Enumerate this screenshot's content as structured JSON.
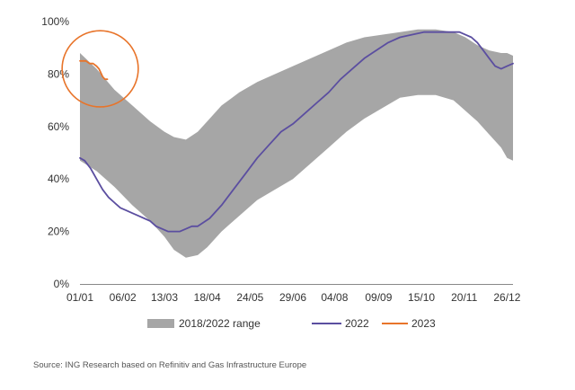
{
  "colors": {
    "range": "#a6a6a6",
    "line2022": "#5b4ea0",
    "line2023": "#e8742a",
    "axis": "#888888",
    "text": "#333333"
  },
  "source": "Source: ING Research based on Refinitiv and Gas Infrastructure Europe",
  "chart_data": {
    "type": "area",
    "x_unit": "day_of_year",
    "xlim": [
      1,
      365
    ],
    "ylim": [
      0,
      100
    ],
    "y_ticks": [
      0,
      20,
      40,
      60,
      80,
      100
    ],
    "y_tick_labels": [
      "0%",
      "20%",
      "40%",
      "60%",
      "80%",
      "100%"
    ],
    "x_ticks": [
      1,
      37,
      72,
      108,
      144,
      180,
      215,
      252,
      288,
      324,
      360
    ],
    "x_tick_labels": [
      "01/01",
      "06/02",
      "13/03",
      "18/04",
      "24/05",
      "29/06",
      "04/08",
      "09/09",
      "15/10",
      "20/11",
      "26/12"
    ],
    "grid": false,
    "legend_position": "bottom",
    "legend": [
      {
        "label": "2018/2022 range",
        "kind": "area"
      },
      {
        "label": "2022",
        "kind": "line"
      },
      {
        "label": "2023",
        "kind": "line"
      }
    ],
    "series": [
      {
        "name": "2018/2022 range",
        "kind": "band",
        "x": [
          1,
          15,
          30,
          45,
          60,
          72,
          80,
          90,
          100,
          108,
          120,
          135,
          150,
          165,
          180,
          195,
          210,
          225,
          240,
          255,
          270,
          285,
          300,
          315,
          325,
          335,
          345,
          355,
          360,
          365
        ],
        "upper": [
          88,
          82,
          74,
          68,
          62,
          58,
          56,
          55,
          58,
          62,
          68,
          73,
          77,
          80,
          83,
          86,
          89,
          92,
          94,
          95,
          96,
          97,
          97,
          96,
          94,
          91,
          89,
          88,
          88,
          87
        ],
        "lower": [
          47,
          43,
          37,
          30,
          24,
          18,
          13,
          10,
          11,
          14,
          20,
          26,
          32,
          36,
          40,
          46,
          52,
          58,
          63,
          67,
          71,
          72,
          72,
          70,
          66,
          62,
          57,
          52,
          48,
          47
        ]
      },
      {
        "name": "2022",
        "kind": "line",
        "x": [
          1,
          5,
          10,
          15,
          20,
          25,
          30,
          35,
          40,
          45,
          50,
          55,
          60,
          65,
          70,
          75,
          80,
          85,
          90,
          95,
          100,
          110,
          120,
          130,
          140,
          150,
          160,
          170,
          180,
          190,
          200,
          210,
          220,
          230,
          240,
          250,
          260,
          270,
          280,
          290,
          300,
          305,
          310,
          315,
          320,
          325,
          330,
          335,
          340,
          345,
          350,
          355,
          360,
          365
        ],
        "y": [
          48,
          47,
          44,
          40,
          36,
          33,
          31,
          29,
          28,
          27,
          26,
          25,
          24,
          22,
          21,
          20,
          20,
          20,
          21,
          22,
          22,
          25,
          30,
          36,
          42,
          48,
          53,
          58,
          61,
          65,
          69,
          73,
          78,
          82,
          86,
          89,
          92,
          94,
          95,
          96,
          96,
          96,
          96,
          96,
          96,
          95,
          94,
          92,
          89,
          86,
          83,
          82,
          83,
          84
        ]
      },
      {
        "name": "2023",
        "kind": "line",
        "x": [
          1,
          3,
          6,
          9,
          12,
          15,
          17,
          20,
          22,
          24
        ],
        "y": [
          85,
          85,
          85,
          84,
          84,
          83,
          82,
          79,
          78,
          78
        ]
      }
    ],
    "annotations": [
      {
        "kind": "circle",
        "around_series": "2023",
        "center": [
          18,
          82
        ],
        "radius_days": 16
      }
    ]
  }
}
